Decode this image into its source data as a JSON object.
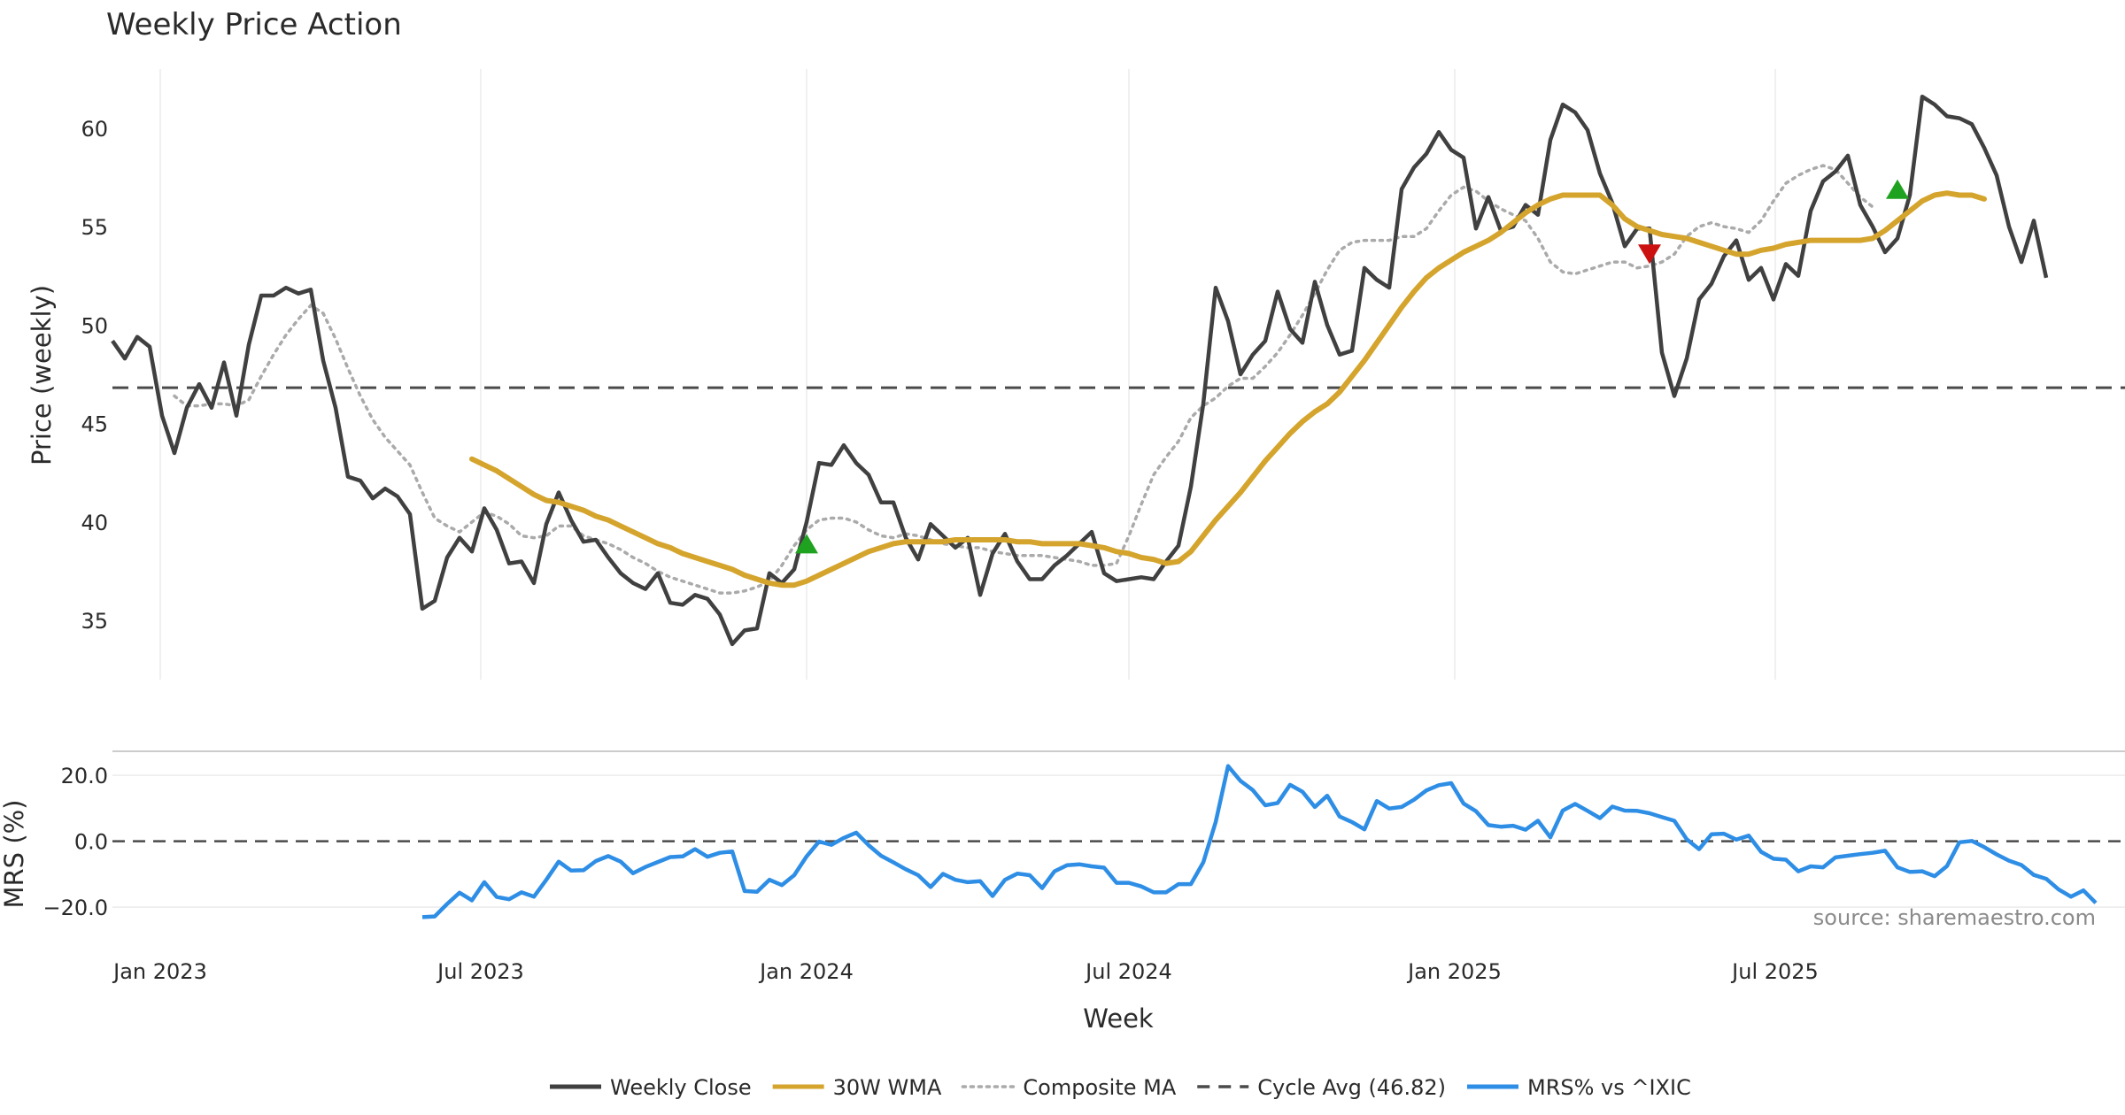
{
  "chart_data": {
    "type": "line",
    "title": "Weekly Price Action",
    "x_axis": {
      "label": "Week",
      "date_range": [
        "2022-12-05",
        "2025-11-10"
      ],
      "ticks": [
        {
          "date": "2023-01-01",
          "label": "Jan 2023"
        },
        {
          "date": "2023-07-01",
          "label": "Jul 2023"
        },
        {
          "date": "2024-01-01",
          "label": "Jan 2024"
        },
        {
          "date": "2024-07-01",
          "label": "Jul 2024"
        },
        {
          "date": "2025-01-01",
          "label": "Jan 2025"
        },
        {
          "date": "2025-07-01",
          "label": "Jul 2025"
        }
      ]
    },
    "price_panel": {
      "ylabel": "Price (weekly)",
      "ylim": [
        32,
        63
      ],
      "yticks": [
        35,
        40,
        45,
        50,
        55,
        60
      ],
      "weekly_close": [
        49.2,
        48.3,
        49.4,
        48.9,
        45.4,
        43.5,
        45.8,
        47.0,
        45.8,
        48.1,
        45.4,
        49.0,
        51.5,
        51.5,
        51.9,
        51.6,
        51.8,
        48.2,
        45.8,
        42.3,
        42.1,
        41.2,
        41.7,
        41.3,
        40.4,
        35.6,
        36.0,
        38.2,
        39.2,
        38.5,
        40.7,
        39.6,
        37.9,
        38.0,
        36.9,
        39.9,
        41.5,
        40.1,
        39.0,
        39.1,
        38.2,
        37.4,
        36.9,
        36.6,
        37.4,
        35.9,
        35.8,
        36.3,
        36.1,
        35.3,
        33.8,
        34.5,
        34.6,
        37.4,
        36.9,
        37.6,
        40.0,
        43.0,
        42.9,
        43.9,
        43.0,
        42.4,
        41.0,
        41.0,
        39.2,
        38.1,
        39.9,
        39.3,
        38.7,
        39.2,
        36.3,
        38.4,
        39.4,
        38.0,
        37.1,
        37.1,
        37.8,
        38.3,
        38.9,
        39.5,
        37.4,
        37.0,
        37.1,
        37.2,
        37.1,
        38.0,
        38.8,
        41.8,
        46.0,
        51.9,
        50.2,
        47.5,
        48.5,
        49.2,
        51.7,
        49.8,
        49.1,
        52.2,
        50.0,
        48.5,
        48.7,
        52.9,
        52.3,
        51.9,
        56.9,
        58.0,
        58.7,
        59.8,
        58.9,
        58.5,
        54.9,
        56.5,
        54.8,
        55.0,
        56.1,
        55.6,
        59.4,
        61.2,
        60.8,
        59.9,
        57.7,
        56.2,
        54.0,
        54.9,
        54.9,
        48.6,
        46.4,
        48.3,
        51.3,
        52.1,
        53.5,
        54.3,
        52.3,
        52.9,
        51.3,
        53.1,
        52.5,
        55.8,
        57.3,
        57.8,
        58.6,
        56.1,
        55.0,
        53.7,
        54.4,
        56.6,
        61.6,
        61.2,
        60.6,
        60.5,
        60.2,
        59.0,
        57.6,
        55.0,
        53.2,
        55.3,
        52.4
      ],
      "wma_30w_start_index": 29,
      "wma_30w": [
        43.2,
        42.9,
        42.6,
        42.2,
        41.8,
        41.4,
        41.1,
        41.0,
        40.8,
        40.6,
        40.3,
        40.1,
        39.8,
        39.5,
        39.2,
        38.9,
        38.7,
        38.4,
        38.2,
        38.0,
        37.8,
        37.6,
        37.3,
        37.1,
        36.9,
        36.8,
        36.8,
        37.0,
        37.3,
        37.6,
        37.9,
        38.2,
        38.5,
        38.7,
        38.9,
        39.0,
        39.0,
        39.0,
        39.0,
        39.1,
        39.1,
        39.1,
        39.1,
        39.1,
        39.0,
        39.0,
        38.9,
        38.9,
        38.9,
        38.9,
        38.8,
        38.7,
        38.5,
        38.4,
        38.2,
        38.1,
        37.9,
        38.0,
        38.5,
        39.3,
        40.1,
        40.8,
        41.5,
        42.3,
        43.1,
        43.8,
        44.5,
        45.1,
        45.6,
        46.0,
        46.6,
        47.4,
        48.2,
        49.1,
        50.0,
        50.9,
        51.7,
        52.4,
        52.9,
        53.3,
        53.7,
        54.0,
        54.3,
        54.7,
        55.2,
        55.7,
        56.1,
        56.4,
        56.6,
        56.6,
        56.6,
        56.6,
        56.1,
        55.4,
        55.0,
        54.8,
        54.6,
        54.5,
        54.4,
        54.2,
        54.0,
        53.8,
        53.6,
        53.6,
        53.8,
        53.9,
        54.1,
        54.2,
        54.3,
        54.3,
        54.3,
        54.3,
        54.3,
        54.4,
        54.8,
        55.3,
        55.8,
        56.3,
        56.6,
        56.7,
        56.6,
        56.6,
        56.4
      ],
      "composite_ma_start_index": 5,
      "composite_ma": [
        46.4,
        45.9,
        45.9,
        46.0,
        46.0,
        45.9,
        46.2,
        47.4,
        48.5,
        49.5,
        50.3,
        51.0,
        50.6,
        49.3,
        47.8,
        46.4,
        45.2,
        44.3,
        43.6,
        42.9,
        41.5,
        40.2,
        39.8,
        39.5,
        40.0,
        40.5,
        40.3,
        39.9,
        39.3,
        39.2,
        39.3,
        39.8,
        39.8,
        39.3,
        39.1,
        38.9,
        38.6,
        38.2,
        37.9,
        37.5,
        37.2,
        37.0,
        36.8,
        36.6,
        36.4,
        36.4,
        36.5,
        36.7,
        37.0,
        37.8,
        38.8,
        39.6,
        40.1,
        40.2,
        40.2,
        40.0,
        39.6,
        39.3,
        39.2,
        39.4,
        39.3,
        39.1,
        38.9,
        38.8,
        38.7,
        38.7,
        38.5,
        38.4,
        38.3,
        38.3,
        38.3,
        38.2,
        38.1,
        38.0,
        37.8,
        37.8,
        37.9,
        39.3,
        40.9,
        42.4,
        43.3,
        44.1,
        45.3,
        45.9,
        46.3,
        46.9,
        47.3,
        47.3,
        47.9,
        48.6,
        49.5,
        50.5,
        51.6,
        52.8,
        53.8,
        54.2,
        54.3,
        54.3,
        54.3,
        54.5,
        54.5,
        54.9,
        55.8,
        56.6,
        57.0,
        56.8,
        56.3,
        55.9,
        55.6,
        55.3,
        54.4,
        53.2,
        52.7,
        52.6,
        52.8,
        53.0,
        53.2,
        53.2,
        52.9,
        53.0,
        53.2,
        53.6,
        54.5,
        55.0,
        55.2,
        55.0,
        54.9,
        54.7,
        55.3,
        56.3,
        57.2,
        57.6,
        57.9,
        58.1,
        57.9,
        57.2,
        56.5,
        56.0
      ],
      "cycle_avg": 46.82,
      "signals": [
        {
          "type": "buy",
          "week_index": 56,
          "value": 38.9
        },
        {
          "type": "sell",
          "week_index": 124,
          "value": 53.6
        },
        {
          "type": "buy",
          "week_index": 144,
          "value": 56.9
        }
      ]
    },
    "mrs_panel": {
      "ylabel": "MRS (%)",
      "ylim": [
        -28,
        27
      ],
      "yticks": [
        20.0,
        0.0,
        -20.0
      ],
      "ytick_labels": [
        "20.0",
        "0.0",
        "−20.0"
      ],
      "zero_line": 0.0,
      "mrs_start_index": 25,
      "mrs": [
        -23.0,
        -22.8,
        -19.0,
        -15.6,
        -17.9,
        -12.4,
        -16.9,
        -17.6,
        -15.5,
        -16.8,
        -11.7,
        -6.2,
        -8.9,
        -8.8,
        -6.0,
        -4.5,
        -6.2,
        -9.7,
        -7.8,
        -6.3,
        -4.8,
        -4.6,
        -2.4,
        -4.7,
        -3.5,
        -3.1,
        -15.1,
        -15.3,
        -11.7,
        -13.3,
        -10.3,
        -4.6,
        -0.1,
        -1.1,
        1.0,
        2.6,
        -1.2,
        -4.4,
        -6.4,
        -8.5,
        -10.3,
        -13.9,
        -9.9,
        -11.7,
        -12.4,
        -12.1,
        -16.6,
        -11.7,
        -9.8,
        -10.3,
        -14.2,
        -9.1,
        -7.3,
        -7.0,
        -7.6,
        -8.0,
        -12.6,
        -12.6,
        -13.7,
        -15.5,
        -15.5,
        -13.0,
        -13.0,
        -6.4,
        5.8,
        22.8,
        18.3,
        15.5,
        10.9,
        11.6,
        17.1,
        15.0,
        10.4,
        13.8,
        7.5,
        5.8,
        3.6,
        12.2,
        9.9,
        10.4,
        12.6,
        15.4,
        17.0,
        17.6,
        11.4,
        9.1,
        4.9,
        4.4,
        4.7,
        3.5,
        6.2,
        1.2,
        9.3,
        11.3,
        9.2,
        7.0,
        10.5,
        9.3,
        9.2,
        8.5,
        7.3,
        6.2,
        0.6,
        -2.4,
        2.1,
        2.3,
        0.5,
        1.7,
        -3.2,
        -5.3,
        -5.6,
        -9.1,
        -7.6,
        -7.9,
        -4.9,
        -4.4,
        -3.9,
        -3.5,
        -2.9,
        -7.9,
        -9.3,
        -9.1,
        -10.6,
        -7.5,
        -0.3,
        0.1,
        -1.8,
        -4.0,
        -5.9,
        -7.2,
        -10.2,
        -11.4,
        -14.6,
        -16.8,
        -14.9,
        -18.7
      ]
    },
    "legend": [
      {
        "key": "close",
        "label": "Weekly Close",
        "color": "#404040",
        "style": "solid"
      },
      {
        "key": "wma",
        "label": "30W WMA",
        "color": "#D4A42C",
        "style": "solid"
      },
      {
        "key": "composite",
        "label": "Composite MA",
        "color": "#AAAAAA",
        "style": "dotted"
      },
      {
        "key": "cycle",
        "label": "Cycle Avg (46.82)",
        "color": "#4A4A4A",
        "style": "dashed"
      },
      {
        "key": "mrs",
        "label": "MRS% vs ^IXIC",
        "color": "#2E8EE5",
        "style": "solid"
      }
    ],
    "annotations": [
      {
        "text": "source: sharemaestro.com"
      }
    ],
    "colors": {
      "close": "#404040",
      "wma": "#D4A42C",
      "composite": "#AAAAAA",
      "cycle": "#4A4A4A",
      "mrs": "#2E8EE5",
      "buy": "#1FA21F",
      "sell": "#CC1111",
      "grid": "#EBEBEB"
    }
  }
}
